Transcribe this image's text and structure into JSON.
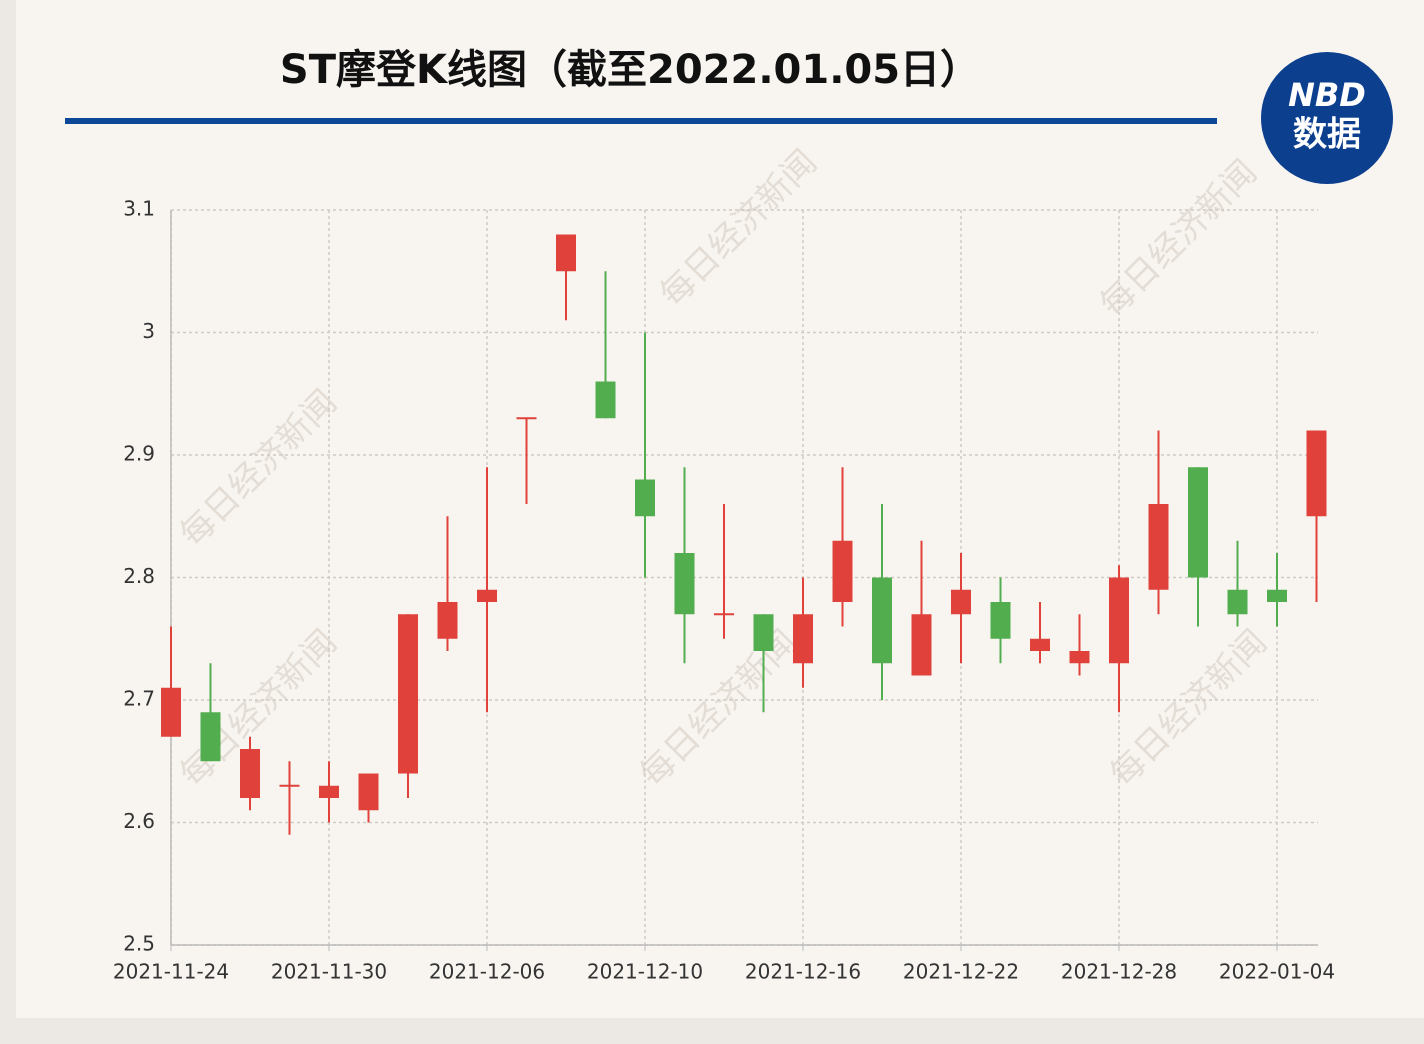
{
  "chart_data": {
    "type": "candlestick",
    "title": "ST摩登K线图（截至2022.01.05日）",
    "logo": [
      "NBD",
      "数据"
    ],
    "watermark": "每日经济新闻",
    "categories": [
      "2021-11-24",
      null,
      null,
      null,
      "2021-11-30",
      null,
      null,
      null,
      "2021-12-06",
      null,
      null,
      null,
      "2021-12-10",
      null,
      null,
      null,
      "2021-12-16",
      null,
      null,
      null,
      "2021-12-22",
      null,
      null,
      null,
      "2021-12-28",
      null,
      null,
      null,
      "2022-01-04",
      null
    ],
    "open": [
      2.67,
      2.69,
      2.62,
      2.63,
      2.62,
      2.61,
      2.64,
      2.75,
      2.78,
      2.93,
      3.05,
      2.96,
      2.88,
      2.82,
      2.77,
      2.77,
      2.73,
      2.78,
      2.8,
      2.72,
      2.77,
      2.78,
      2.74,
      2.73,
      2.73,
      2.79,
      2.89,
      2.79,
      2.79,
      2.85
    ],
    "high": [
      2.76,
      2.73,
      2.67,
      2.65,
      2.65,
      2.64,
      2.77,
      2.85,
      2.89,
      2.93,
      3.08,
      3.05,
      3.0,
      2.89,
      2.86,
      2.77,
      2.8,
      2.89,
      2.86,
      2.83,
      2.82,
      2.8,
      2.78,
      2.77,
      2.81,
      2.92,
      2.89,
      2.83,
      2.82,
      2.92
    ],
    "low": [
      2.67,
      2.65,
      2.61,
      2.59,
      2.6,
      2.6,
      2.62,
      2.74,
      2.69,
      2.86,
      3.01,
      2.93,
      2.8,
      2.73,
      2.75,
      2.69,
      2.71,
      2.76,
      2.7,
      2.72,
      2.73,
      2.73,
      2.73,
      2.72,
      2.69,
      2.77,
      2.76,
      2.76,
      2.76,
      2.78
    ],
    "close": [
      2.71,
      2.65,
      2.66,
      2.63,
      2.63,
      2.64,
      2.77,
      2.78,
      2.79,
      2.93,
      3.08,
      2.93,
      2.85,
      2.77,
      2.77,
      2.74,
      2.77,
      2.83,
      2.73,
      2.77,
      2.79,
      2.75,
      2.75,
      2.74,
      2.8,
      2.86,
      2.8,
      2.77,
      2.78,
      2.92
    ],
    "up_color": "#e0413a",
    "down_color": "#52ad4f",
    "ylim": [
      2.5,
      3.1
    ],
    "yticks": [
      2.5,
      2.6,
      2.7,
      2.8,
      2.9,
      3,
      3.1
    ],
    "grid": true
  }
}
